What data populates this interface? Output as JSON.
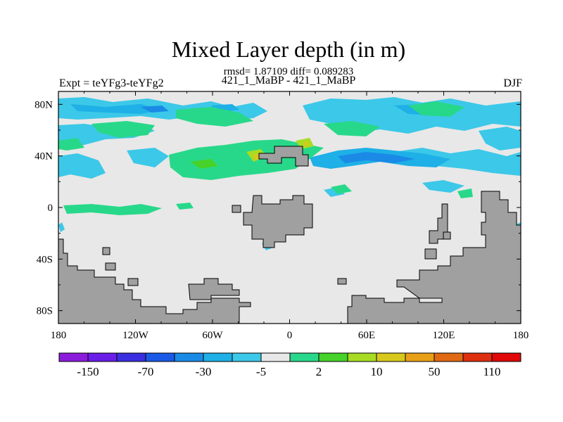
{
  "chart_data": {
    "type": "heatmap",
    "title": "Mixed Layer depth (in m)",
    "stats": "rmsd= 1.87109 diff= 0.089283",
    "runs": "421_1_MaBP - 421_1_MaBP",
    "experiment": "Expt = teYFg3-teYFg2",
    "season": "DJF",
    "x_ticks": [
      "180",
      "120W",
      "60W",
      "0",
      "60E",
      "120E",
      "180"
    ],
    "x_tick_values": [
      -180,
      -120,
      -60,
      0,
      60,
      120,
      180
    ],
    "y_ticks": [
      "80N",
      "40N",
      "0",
      "40S",
      "80S"
    ],
    "y_tick_values": [
      80,
      40,
      0,
      -40,
      -80
    ],
    "xlim": [
      -180,
      180
    ],
    "ylim": [
      -90,
      90
    ],
    "colorbar": {
      "colors": [
        "#8c1cdc",
        "#6a1ee8",
        "#3a2fe0",
        "#1a5ae6",
        "#1a8ae6",
        "#1eb0e6",
        "#3cc8e8",
        "#e8e8e8",
        "#28d88a",
        "#46d22a",
        "#a8dc24",
        "#d8c81c",
        "#e8a018",
        "#e06a14",
        "#dc3010",
        "#e00808"
      ],
      "labels": [
        "-150",
        "-70",
        "-30",
        "-5",
        "2",
        "10",
        "50",
        "110"
      ]
    },
    "land_color": "#a0a0a0",
    "ocean_color": "#e8e8e8"
  }
}
